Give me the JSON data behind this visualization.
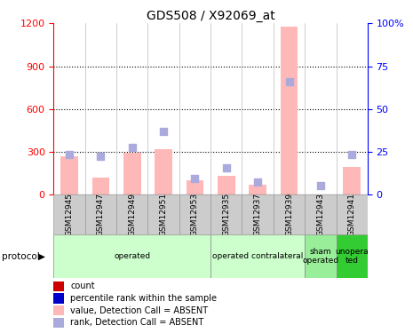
{
  "title": "GDS508 / X92069_at",
  "samples": [
    "GSM12945",
    "GSM12947",
    "GSM12949",
    "GSM12951",
    "GSM12953",
    "GSM12935",
    "GSM12937",
    "GSM12939",
    "GSM12943",
    "GSM12941"
  ],
  "pink_values": [
    270,
    120,
    295,
    320,
    100,
    130,
    70,
    1175,
    0,
    195
  ],
  "blue_values": [
    285,
    270,
    330,
    445,
    115,
    190,
    90,
    790,
    65,
    285
  ],
  "ylim_left": [
    0,
    1200
  ],
  "ylim_right": [
    0,
    100
  ],
  "yticks_left": [
    0,
    300,
    600,
    900,
    1200
  ],
  "yticks_right": [
    0,
    25,
    50,
    75,
    100
  ],
  "ytick_labels_right": [
    "0",
    "25",
    "50",
    "75",
    "100%"
  ],
  "pink_color": "#FFB8B8",
  "blue_color": "#AAAADD",
  "red_sq_color": "#CC0000",
  "blue_sq_color": "#0000CC",
  "grid_ticks": [
    300,
    600,
    900
  ],
  "protocol_groups": [
    {
      "label": "operated",
      "start": 0,
      "end": 5,
      "color": "#CCFFCC"
    },
    {
      "label": "operated contralateral",
      "start": 5,
      "end": 8,
      "color": "#CCFFCC"
    },
    {
      "label": "sham\noperated",
      "start": 8,
      "end": 9,
      "color": "#99EE99"
    },
    {
      "label": "unopera\nted",
      "start": 9,
      "end": 10,
      "color": "#33CC33"
    }
  ],
  "legend_items": [
    {
      "color": "#CC0000",
      "label": "count"
    },
    {
      "color": "#0000CC",
      "label": "percentile rank within the sample"
    },
    {
      "color": "#FFB8B8",
      "label": "value, Detection Call = ABSENT"
    },
    {
      "color": "#AAAADD",
      "label": "rank, Detection Call = ABSENT"
    }
  ],
  "protocol_label": "protocol"
}
